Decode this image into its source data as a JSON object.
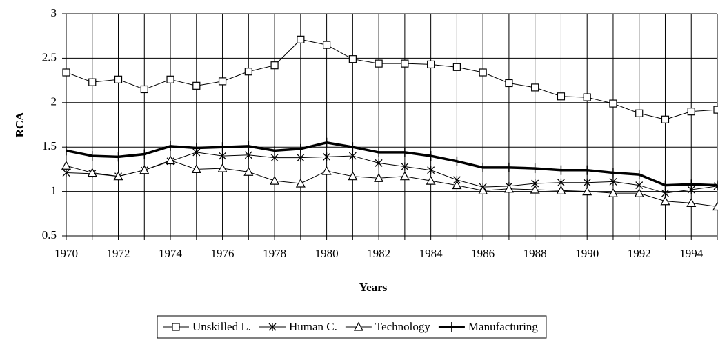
{
  "chart_data": {
    "type": "line",
    "x_label": "Years",
    "y_label": "RCA",
    "categories": [
      "1970",
      null,
      "1972",
      null,
      "1974",
      null,
      "1976",
      null,
      "1978",
      null,
      "1980",
      null,
      "1982",
      null,
      "1984",
      null,
      "1986",
      null,
      "1988",
      null,
      "1990",
      null,
      "1992",
      null,
      "1994",
      null
    ],
    "ylim": [
      0.5,
      3
    ],
    "yticks": [
      0.5,
      1,
      1.5,
      2,
      2.5,
      3
    ],
    "grid": true,
    "series": [
      {
        "name": "Unskilled L.",
        "color": "#000000",
        "marker": "square",
        "width": 1,
        "values": [
          2.34,
          2.23,
          2.26,
          2.15,
          2.26,
          2.19,
          2.24,
          2.35,
          2.42,
          2.71,
          2.65,
          2.49,
          2.44,
          2.44,
          2.43,
          2.4,
          2.34,
          2.22,
          2.17,
          2.07,
          2.06,
          1.99,
          1.88,
          1.81,
          1.9,
          1.92
        ]
      },
      {
        "name": "Human C.",
        "color": "#000000",
        "marker": "star",
        "width": 1,
        "values": [
          1.21,
          1.2,
          1.17,
          1.24,
          1.34,
          1.44,
          1.4,
          1.41,
          1.38,
          1.38,
          1.39,
          1.4,
          1.32,
          1.28,
          1.24,
          1.13,
          1.05,
          1.06,
          1.09,
          1.1,
          1.1,
          1.11,
          1.07,
          0.98,
          1.02,
          1.06
        ]
      },
      {
        "name": "Technology",
        "color": "#000000",
        "marker": "triangle",
        "width": 1,
        "values": [
          1.29,
          1.21,
          1.17,
          1.24,
          1.35,
          1.25,
          1.26,
          1.22,
          1.12,
          1.09,
          1.23,
          1.17,
          1.15,
          1.17,
          1.12,
          1.07,
          1.01,
          1.03,
          1.02,
          1.01,
          1.0,
          0.98,
          0.98,
          0.89,
          0.87,
          0.83
        ]
      },
      {
        "name": "Manufacturing",
        "color": "#000000",
        "marker": "plus",
        "width": 3.5,
        "values": [
          1.46,
          1.4,
          1.39,
          1.42,
          1.51,
          1.49,
          1.5,
          1.51,
          1.46,
          1.48,
          1.55,
          1.5,
          1.44,
          1.44,
          1.4,
          1.34,
          1.27,
          1.27,
          1.26,
          1.24,
          1.24,
          1.21,
          1.19,
          1.07,
          1.08,
          1.07
        ]
      }
    ]
  }
}
